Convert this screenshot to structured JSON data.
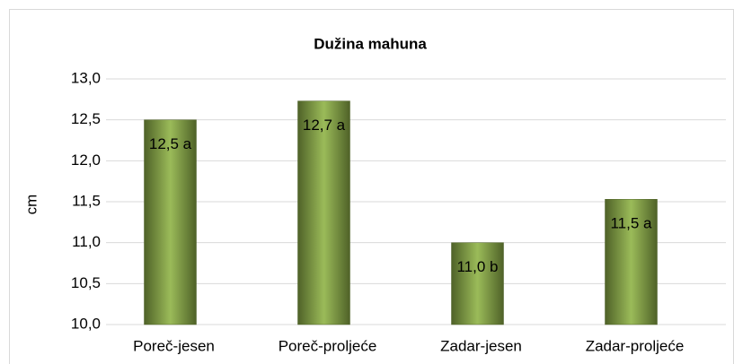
{
  "chart_data": {
    "type": "bar",
    "title": "Dužina mahuna",
    "y_label": "cm",
    "categories": [
      "Poreč-jesen",
      "Poreč-proljeće",
      "Zadar-jesen",
      "Zadar-proljeće"
    ],
    "values": [
      12.5,
      12.73,
      11.0,
      11.53
    ],
    "value_labels": [
      "12,5 a",
      "12,7 a",
      "11,0 b",
      "11,5 a"
    ],
    "color": "#77933c",
    "ylim": [
      10,
      13
    ],
    "yticks": [
      {
        "value": 10,
        "label": "10,0"
      },
      {
        "value": 10.5,
        "label": "10,5"
      },
      {
        "value": 11,
        "label": "11,0"
      },
      {
        "value": 11.5,
        "label": "11,5"
      },
      {
        "value": 12,
        "label": "12,0"
      },
      {
        "value": 12.5,
        "label": "12,5"
      },
      {
        "value": 13,
        "label": "13,0"
      }
    ],
    "grid": true
  }
}
